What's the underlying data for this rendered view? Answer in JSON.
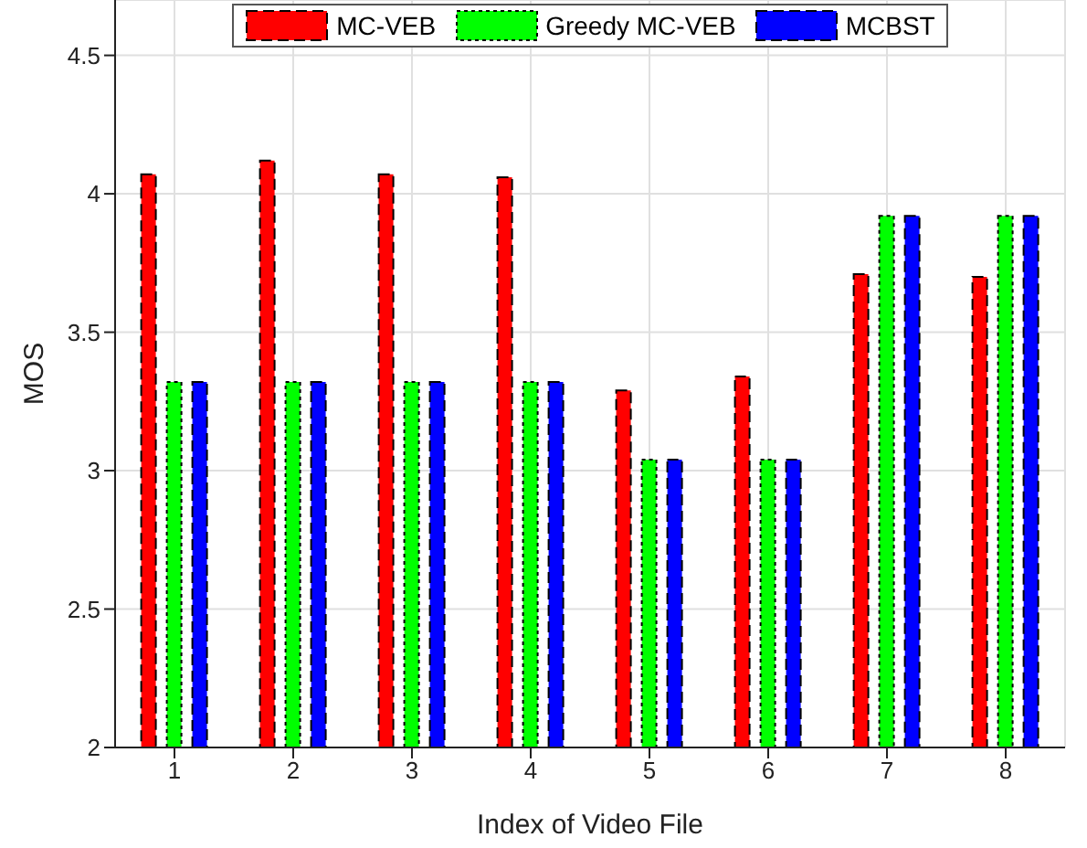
{
  "chart_data": {
    "type": "bar",
    "xlabel": "Index of Video File",
    "ylabel": "MOS",
    "categories": [
      "1",
      "2",
      "3",
      "4",
      "5",
      "6",
      "7",
      "8"
    ],
    "series": [
      {
        "name": "MC-VEB",
        "color": "#ff0000",
        "values": [
          4.07,
          4.12,
          4.07,
          4.06,
          3.29,
          3.34,
          3.71,
          3.7
        ]
      },
      {
        "name": "Greedy MC-VEB",
        "color": "#00ff00",
        "values": [
          3.32,
          3.32,
          3.32,
          3.32,
          3.04,
          3.04,
          3.92,
          3.92
        ]
      },
      {
        "name": "MCBST",
        "color": "#0000ff",
        "values": [
          3.32,
          3.32,
          3.32,
          3.32,
          3.04,
          3.04,
          3.92,
          3.92
        ]
      }
    ],
    "ylim": [
      2,
      4.7
    ],
    "yticks": [
      2,
      2.5,
      3,
      3.5,
      4,
      4.5
    ],
    "grid": true,
    "legend": "top"
  }
}
